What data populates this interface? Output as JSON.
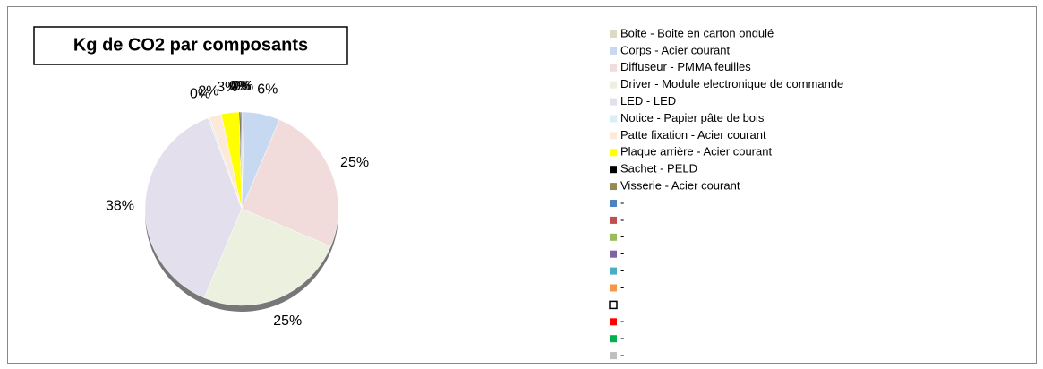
{
  "chart_data": {
    "type": "pie",
    "title": "Kg de CO2 par composants",
    "categories": [
      "Boite - Boite en carton ondulé",
      "Corps - Acier courant",
      "Diffuseur - PMMA feuilles",
      "Driver - Module electronique de commande",
      "LED - LED",
      "Notice - Papier pâte de bois",
      "Patte fixation - Acier courant",
      "Plaque arrière - Acier courant",
      "Sachet - PELD",
      "Visserie - Acier courant",
      "-",
      "-",
      "-",
      "-",
      "-",
      "-",
      "-",
      "-",
      "-",
      "-"
    ],
    "values": [
      0.4,
      6,
      25,
      25,
      38,
      0.3,
      2,
      3,
      0.2,
      0.2,
      null,
      null,
      null,
      null,
      null,
      null,
      null,
      null,
      null,
      null
    ],
    "value_labels": [
      "0%",
      "6%",
      "25%",
      "25%",
      "38%",
      "0%",
      "2%",
      "3%",
      "0%",
      "0%",
      null,
      null,
      null,
      null,
      null,
      null,
      null,
      null,
      null,
      null
    ],
    "colors": [
      "#ddd9c3",
      "#c6d9f1",
      "#f2dcdb",
      "#ebf1de",
      "#e4dfec",
      "#dbeef4",
      "#fde9d9",
      "#ffff00",
      "#000000",
      "#948a54",
      "#4f81bd",
      "#c0504d",
      "#9bbb59",
      "#8064a2",
      "#4bacc6",
      "#f79646",
      "#ffffff",
      "#ff0000",
      "#00b050",
      "#bfbfbf"
    ],
    "legend": "right"
  }
}
